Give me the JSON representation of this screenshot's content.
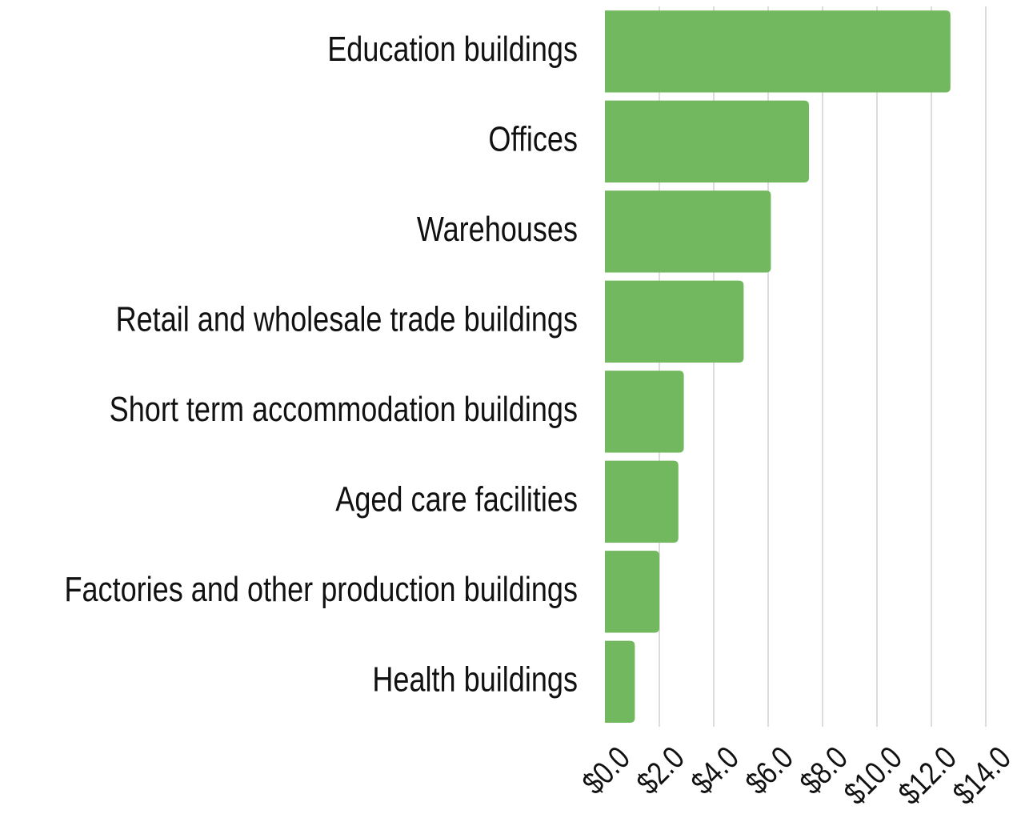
{
  "chart_data": {
    "type": "barh",
    "categories": [
      "Education buildings",
      "Offices",
      "Warehouses",
      "Retail and wholesale trade buildings",
      "Short term accommodation buildings",
      "Aged care facilities",
      "Factories and other production buildings",
      "Health buildings"
    ],
    "values": [
      12.7,
      7.5,
      6.1,
      5.1,
      2.9,
      2.7,
      2.0,
      1.1
    ],
    "color": "#72b85e",
    "xlim": [
      0,
      14
    ],
    "xticks": [
      {
        "value": 0,
        "label": "$0.0"
      },
      {
        "value": 2,
        "label": "$2.0"
      },
      {
        "value": 4,
        "label": "$4.0"
      },
      {
        "value": 6,
        "label": "$6.0"
      },
      {
        "value": 8,
        "label": "$8.0"
      },
      {
        "value": 10,
        "label": "$10.0"
      },
      {
        "value": 12,
        "label": "$12.0"
      },
      {
        "value": 14,
        "label": "$14.0"
      }
    ],
    "grid": true
  }
}
